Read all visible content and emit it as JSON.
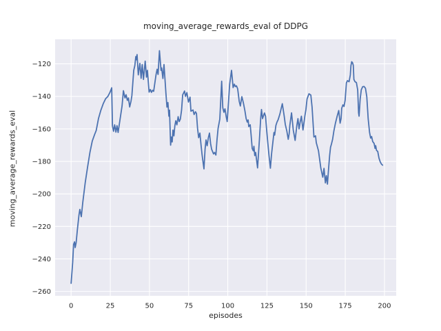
{
  "figure": {
    "title": "moving_average_rewards_eval of DDPG",
    "xlabel": "episodes",
    "ylabel": "moving_average_rewards_eval"
  },
  "chart_data": {
    "type": "line",
    "title": "moving_average_rewards_eval of DDPG",
    "xlabel": "episodes",
    "ylabel": "moving_average_rewards_eval",
    "grid": true,
    "legend": "none",
    "xlim": [
      -10.2,
      207.5
    ],
    "ylim": [
      -262.7,
      -104.9
    ],
    "x_ticks": [
      0,
      25,
      50,
      75,
      100,
      125,
      150,
      175,
      200
    ],
    "x_tick_labels": [
      "0",
      "25",
      "50",
      "75",
      "100",
      "125",
      "150",
      "175",
      "200"
    ],
    "y_ticks": [
      -120,
      -140,
      -160,
      -180,
      -200,
      -220,
      -240,
      -260
    ],
    "y_tick_labels": [
      "−120",
      "−140",
      "−160",
      "−180",
      "−200",
      "−220",
      "−240",
      "−260"
    ],
    "style": {
      "line_color": "#4c72b0",
      "plot_bg": "#eaeaf2",
      "grid_color": "#ffffff",
      "fig_bg": "#ffffff",
      "text_color": "#262626",
      "line_width": 1.8,
      "tick_font_size": 10
    },
    "series": [
      {
        "name": "moving_average_rewards_eval",
        "points": [
          [
            0,
            -255
          ],
          [
            1,
            -242
          ],
          [
            1.6,
            -231
          ],
          [
            2.2,
            -229.5
          ],
          [
            2.6,
            -233
          ],
          [
            3.2,
            -230
          ],
          [
            4,
            -222
          ],
          [
            5,
            -213
          ],
          [
            5.6,
            -209.5
          ],
          [
            6.5,
            -214
          ],
          [
            7.5,
            -205
          ],
          [
            9,
            -193
          ],
          [
            10.5,
            -183.5
          ],
          [
            12,
            -174.5
          ],
          [
            13.5,
            -167.5
          ],
          [
            15,
            -163.5
          ],
          [
            16,
            -161
          ],
          [
            17.5,
            -153.5
          ],
          [
            19,
            -148.5
          ],
          [
            20.5,
            -144.5
          ],
          [
            22,
            -141.5
          ],
          [
            23.5,
            -140
          ],
          [
            24.8,
            -137.5
          ],
          [
            25.9,
            -134.7
          ],
          [
            26.4,
            -158
          ],
          [
            27.1,
            -161.5
          ],
          [
            27.8,
            -157.5
          ],
          [
            28.6,
            -162
          ],
          [
            29.3,
            -158
          ],
          [
            30,
            -162.2
          ],
          [
            31.5,
            -152.5
          ],
          [
            32.5,
            -146
          ],
          [
            33.4,
            -136.5
          ],
          [
            34.4,
            -141
          ],
          [
            35.1,
            -139
          ],
          [
            35.9,
            -142.5
          ],
          [
            36.6,
            -141
          ],
          [
            37.4,
            -146.5
          ],
          [
            38.2,
            -143
          ],
          [
            38.8,
            -139.5
          ],
          [
            40,
            -124
          ],
          [
            40.7,
            -121
          ],
          [
            41.3,
            -115.5
          ],
          [
            41.7,
            -117.5
          ],
          [
            42.1,
            -114.3
          ],
          [
            42.9,
            -126.8
          ],
          [
            43.9,
            -119.7
          ],
          [
            44.7,
            -128.9
          ],
          [
            45.4,
            -120.4
          ],
          [
            46.2,
            -129.6
          ],
          [
            47.3,
            -118.3
          ],
          [
            48.1,
            -128.2
          ],
          [
            48.7,
            -124
          ],
          [
            49.8,
            -137.4
          ],
          [
            50.6,
            -135.8
          ],
          [
            51.3,
            -137.5
          ],
          [
            52,
            -136.3
          ],
          [
            52.7,
            -136.9
          ],
          [
            54.2,
            -126.8
          ],
          [
            54.9,
            -123.3
          ],
          [
            55.5,
            -126.5
          ],
          [
            56.4,
            -111.9
          ],
          [
            57.4,
            -124
          ],
          [
            57.8,
            -122.5
          ],
          [
            58.6,
            -129
          ],
          [
            59.3,
            -120.4
          ],
          [
            60.5,
            -138.1
          ],
          [
            61.2,
            -146.6
          ],
          [
            61.8,
            -143.8
          ],
          [
            62.4,
            -152.2
          ],
          [
            62.8,
            -148.5
          ],
          [
            63.5,
            -170
          ],
          [
            64,
            -165
          ],
          [
            64.5,
            -168
          ],
          [
            65,
            -160.7
          ],
          [
            65.6,
            -164.3
          ],
          [
            66.2,
            -158.3
          ],
          [
            66.8,
            -155
          ],
          [
            67.5,
            -157.5
          ],
          [
            68.3,
            -152.5
          ],
          [
            69,
            -155.5
          ],
          [
            69.7,
            -154
          ],
          [
            70.5,
            -148.5
          ],
          [
            71.2,
            -139.1
          ],
          [
            72.4,
            -136.7
          ],
          [
            73,
            -140
          ],
          [
            73.9,
            -137.7
          ],
          [
            74.9,
            -143.5
          ],
          [
            75.9,
            -140.5
          ],
          [
            76.5,
            -149.1
          ],
          [
            77.8,
            -148.4
          ],
          [
            78.5,
            -151.2
          ],
          [
            79.4,
            -149.5
          ],
          [
            80,
            -150.5
          ],
          [
            80.7,
            -159.7
          ],
          [
            81.4,
            -165.4
          ],
          [
            82.2,
            -162.6
          ],
          [
            82.9,
            -169.7
          ],
          [
            83.6,
            -176.1
          ],
          [
            84.8,
            -184.6
          ],
          [
            85.5,
            -172.5
          ],
          [
            86.1,
            -166.8
          ],
          [
            86.8,
            -170.4
          ],
          [
            87.6,
            -165.4
          ],
          [
            88.3,
            -162.6
          ],
          [
            89,
            -169
          ],
          [
            89.7,
            -172.5
          ],
          [
            90.9,
            -175.4
          ],
          [
            91.6,
            -174.5
          ],
          [
            92.4,
            -176.1
          ],
          [
            93.1,
            -166.8
          ],
          [
            93.8,
            -159.7
          ],
          [
            94.9,
            -154
          ],
          [
            96.1,
            -130.7
          ],
          [
            96.8,
            -146.9
          ],
          [
            97.5,
            -149.8
          ],
          [
            98.2,
            -147.7
          ],
          [
            99,
            -152.6
          ],
          [
            99.6,
            -155.5
          ],
          [
            100.3,
            -145.5
          ],
          [
            101.2,
            -132.5
          ],
          [
            102.4,
            -124
          ],
          [
            103.4,
            -134.6
          ],
          [
            104.2,
            -132.5
          ],
          [
            104.8,
            -134
          ],
          [
            105.5,
            -133.5
          ],
          [
            106.3,
            -135.3
          ],
          [
            107.3,
            -143.1
          ],
          [
            108,
            -145.9
          ],
          [
            109,
            -140.2
          ],
          [
            109.9,
            -143.8
          ],
          [
            110.9,
            -148.8
          ],
          [
            111.7,
            -153.7
          ],
          [
            112.4,
            -155.8
          ],
          [
            113,
            -154.5
          ],
          [
            113.4,
            -158.6
          ],
          [
            114.3,
            -157.5
          ],
          [
            114.9,
            -163.6
          ],
          [
            115.6,
            -172.1
          ],
          [
            116.3,
            -173.5
          ],
          [
            116.7,
            -170.7
          ],
          [
            117.2,
            -176.4
          ],
          [
            117.8,
            -174.5
          ],
          [
            119,
            -184
          ],
          [
            120.2,
            -166.4
          ],
          [
            121,
            -153.7
          ],
          [
            121.5,
            -148.1
          ],
          [
            122.2,
            -153.7
          ],
          [
            123.4,
            -150.2
          ],
          [
            124.1,
            -152.3
          ],
          [
            124.8,
            -160.8
          ],
          [
            125.6,
            -169.3
          ],
          [
            126.3,
            -176.4
          ],
          [
            127.2,
            -184.2
          ],
          [
            128,
            -175
          ],
          [
            128.8,
            -167.9
          ],
          [
            129.5,
            -162.2
          ],
          [
            129.9,
            -163.8
          ],
          [
            130.7,
            -157.9
          ],
          [
            131.4,
            -155.8
          ],
          [
            132.1,
            -154.4
          ],
          [
            133.2,
            -151
          ],
          [
            134.8,
            -144.5
          ],
          [
            136,
            -152
          ],
          [
            136.7,
            -157.2
          ],
          [
            137.7,
            -161.4
          ],
          [
            138.6,
            -166.4
          ],
          [
            139.2,
            -162.9
          ],
          [
            139.6,
            -157.9
          ],
          [
            140.7,
            -150.1
          ],
          [
            141.8,
            -160.7
          ],
          [
            143,
            -167.1
          ],
          [
            144.1,
            -157.9
          ],
          [
            144.8,
            -153.7
          ],
          [
            145.5,
            -160
          ],
          [
            146.2,
            -155.8
          ],
          [
            147,
            -152.2
          ],
          [
            148,
            -160.7
          ],
          [
            149.2,
            -152.2
          ],
          [
            149.9,
            -148
          ],
          [
            150.6,
            -141.6
          ],
          [
            151.8,
            -138.4
          ],
          [
            153,
            -139.2
          ],
          [
            153.8,
            -146.6
          ],
          [
            155,
            -165
          ],
          [
            156,
            -164.3
          ],
          [
            156.5,
            -168.5
          ],
          [
            157.9,
            -173.5
          ],
          [
            159.4,
            -184.1
          ],
          [
            160.6,
            -189.7
          ],
          [
            161.4,
            -184.3
          ],
          [
            162.3,
            -193.2
          ],
          [
            162.9,
            -188.8
          ],
          [
            163.6,
            -194
          ],
          [
            164.3,
            -184.8
          ],
          [
            165,
            -176.3
          ],
          [
            165.6,
            -171.3
          ],
          [
            166.2,
            -169.2
          ],
          [
            166.9,
            -166.4
          ],
          [
            167.7,
            -161.4
          ],
          [
            168.7,
            -156.5
          ],
          [
            169.8,
            -152.2
          ],
          [
            170.8,
            -148.7
          ],
          [
            171.7,
            -156.5
          ],
          [
            172.3,
            -153.7
          ],
          [
            172.7,
            -147.3
          ],
          [
            173.5,
            -145.2
          ],
          [
            174.2,
            -146.2
          ],
          [
            174.9,
            -142.3
          ],
          [
            175.7,
            -131.7
          ],
          [
            176.4,
            -130.3
          ],
          [
            177.4,
            -131
          ],
          [
            178.2,
            -126.8
          ],
          [
            178.6,
            -121.1
          ],
          [
            179.1,
            -118.7
          ],
          [
            179.6,
            -119.3
          ],
          [
            180.1,
            -120.8
          ],
          [
            180.5,
            -129.6
          ],
          [
            181.2,
            -131
          ],
          [
            182.1,
            -131.5
          ],
          [
            182.9,
            -136
          ],
          [
            183.5,
            -150.1
          ],
          [
            183.8,
            -152.2
          ],
          [
            184.5,
            -141.6
          ],
          [
            185.2,
            -136
          ],
          [
            186.1,
            -134.1
          ],
          [
            187,
            -133.9
          ],
          [
            187.9,
            -135
          ],
          [
            188.7,
            -140.2
          ],
          [
            189.6,
            -153.7
          ],
          [
            190.5,
            -162.1
          ],
          [
            191.2,
            -165.7
          ],
          [
            191.8,
            -164.7
          ],
          [
            192.5,
            -167.8
          ],
          [
            193.4,
            -168.9
          ],
          [
            194,
            -172
          ],
          [
            194.4,
            -170.3
          ],
          [
            194.9,
            -173.2
          ],
          [
            195.7,
            -173.9
          ],
          [
            196.5,
            -178
          ],
          [
            197.3,
            -180.3
          ],
          [
            198.1,
            -181.7
          ],
          [
            198.8,
            -182.3
          ]
        ]
      }
    ]
  }
}
